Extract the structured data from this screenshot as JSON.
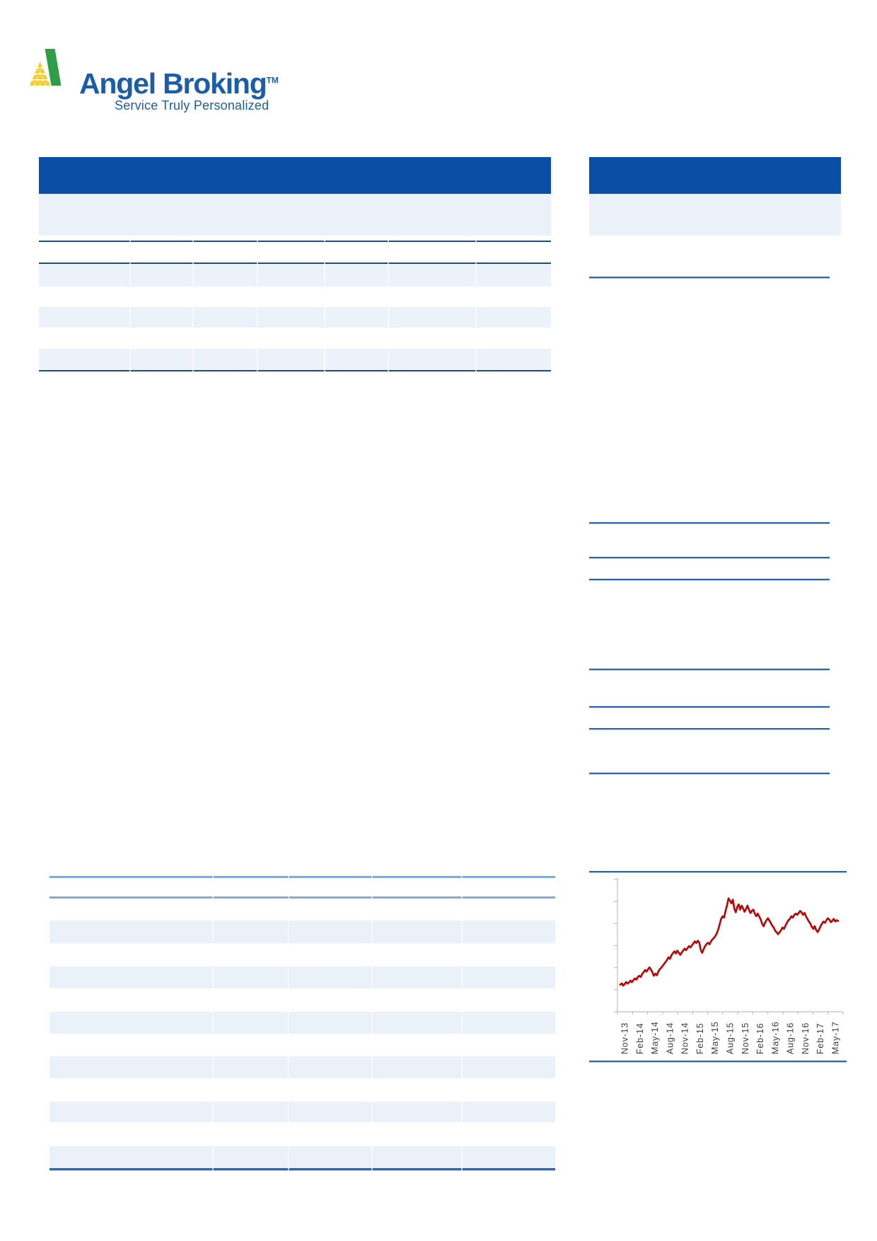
{
  "logo": {
    "brand": "Angel Broking",
    "trademark": "TM",
    "tagline": "Service Truly Personalized",
    "brand_color": "#1a5dab",
    "mark_green": "#2f9e45",
    "mark_yellow": "#fdc608"
  },
  "palette": {
    "header_bar_blue": "#0a4fa5",
    "panel_band_blue": "#eaf1f8",
    "table_row_shade": "#ecf2f9",
    "rule_navy": "#1f4e79",
    "rule_blue": "#2a65ad",
    "rule_steel": "#84a9d4",
    "chart_line_red": "#c00000",
    "axis_gray": "#bfbfbf",
    "tick_label_gray": "#3f3f3f"
  },
  "chart_data": {
    "type": "line",
    "x_tick_labels": [
      "Nov-13",
      "Feb-14",
      "May-14",
      "Aug-14",
      "Nov-14",
      "Feb-15",
      "May-15",
      "Aug-15",
      "Nov-15",
      "Feb-16",
      "May-16",
      "Aug-16",
      "Nov-16",
      "Feb-17",
      "May-17"
    ],
    "y_axis": {
      "tick_count": 7,
      "labels_visible": false
    },
    "grid": false,
    "legend": false,
    "series": [
      {
        "name": "series-1",
        "color": "#c00000",
        "value_scale": "fraction of plot height from bottom (no y-axis labels visible)",
        "values": [
          0.205,
          0.215,
          0.198,
          0.21,
          0.225,
          0.213,
          0.222,
          0.236,
          0.224,
          0.24,
          0.252,
          0.243,
          0.262,
          0.272,
          0.263,
          0.286,
          0.3,
          0.316,
          0.304,
          0.322,
          0.336,
          0.318,
          0.298,
          0.272,
          0.288,
          0.276,
          0.302,
          0.322,
          0.332,
          0.347,
          0.362,
          0.377,
          0.392,
          0.412,
          0.4,
          0.427,
          0.442,
          0.457,
          0.44,
          0.462,
          0.447,
          0.43,
          0.447,
          0.462,
          0.477,
          0.465,
          0.482,
          0.497,
          0.486,
          0.502,
          0.517,
          0.532,
          0.52,
          0.537,
          0.524,
          0.47,
          0.445,
          0.472,
          0.497,
          0.512,
          0.522,
          0.51,
          0.532,
          0.547,
          0.557,
          0.572,
          0.592,
          0.622,
          0.662,
          0.702,
          0.722,
          0.712,
          0.762,
          0.802,
          0.857,
          0.84,
          0.82,
          0.847,
          0.782,
          0.752,
          0.792,
          0.812,
          0.772,
          0.802,
          0.782,
          0.756,
          0.777,
          0.802,
          0.772,
          0.746,
          0.762,
          0.772,
          0.742,
          0.722,
          0.742,
          0.72,
          0.7,
          0.666,
          0.646,
          0.672,
          0.692,
          0.707,
          0.69,
          0.67,
          0.65,
          0.636,
          0.612,
          0.6,
          0.586,
          0.602,
          0.617,
          0.637,
          0.626,
          0.652,
          0.672,
          0.692,
          0.702,
          0.722,
          0.712,
          0.732,
          0.742,
          0.732,
          0.747,
          0.762,
          0.752,
          0.732,
          0.747,
          0.722,
          0.702,
          0.682,
          0.667,
          0.642,
          0.627,
          0.647,
          0.617,
          0.602,
          0.622,
          0.647,
          0.667,
          0.682,
          0.672,
          0.692,
          0.707,
          0.697,
          0.677,
          0.687,
          0.702,
          0.682,
          0.692,
          0.687
        ]
      }
    ]
  }
}
